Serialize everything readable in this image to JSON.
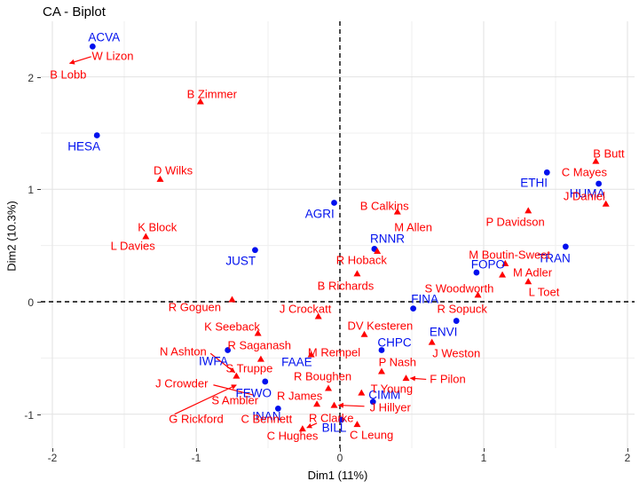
{
  "title": "CA - Biplot",
  "colors": {
    "committee": "#0010ee",
    "person": "#ff0000",
    "grid_major": "#e2e2e2",
    "grid_minor": "#efefef",
    "reference_line": "#000000",
    "axis_text": "#303030",
    "background": "#ffffff"
  },
  "chart_data": {
    "type": "scatter",
    "title": "CA - Biplot",
    "xlabel": "Dim1 (11%)",
    "ylabel": "Dim2 (10.3%)",
    "xlim": [
      -2.08,
      2.05
    ],
    "ylim": [
      -1.3,
      2.5
    ],
    "x_ticks": [
      -2,
      -1,
      0,
      1,
      2
    ],
    "y_ticks": [
      -1,
      0,
      1,
      2
    ],
    "x_minor": [
      -1.5,
      -0.5,
      0.5,
      1.5
    ],
    "y_minor": [
      -0.5,
      0.5,
      1.5,
      2.5
    ],
    "grid": true,
    "legend": "none",
    "reference_lines": {
      "vline_x": 0,
      "hline_y": 0,
      "style": "dashed"
    },
    "series": [
      {
        "name": "committees",
        "marker": "circle",
        "color": "#0010ee",
        "points": [
          {
            "label": "ACVA",
            "x": -1.72,
            "y": 2.27,
            "lx": -1.64,
            "ly": 2.35
          },
          {
            "label": "HESA",
            "x": -1.69,
            "y": 1.48,
            "lx": -1.78,
            "ly": 1.38
          },
          {
            "label": "AGRI",
            "x": -0.04,
            "y": 0.88,
            "lx": -0.14,
            "ly": 0.78
          },
          {
            "label": "JUST",
            "x": -0.59,
            "y": 0.46,
            "lx": -0.69,
            "ly": 0.36
          },
          {
            "label": "RNNR",
            "x": 0.24,
            "y": 0.47,
            "lx": 0.33,
            "ly": 0.56
          },
          {
            "label": "ETHI",
            "x": 1.44,
            "y": 1.15,
            "lx": 1.35,
            "ly": 1.06
          },
          {
            "label": "HUMA",
            "x": 1.8,
            "y": 1.05,
            "lx": 1.72,
            "ly": 0.96
          },
          {
            "label": "TRAN",
            "x": 1.57,
            "y": 0.49,
            "lx": 1.49,
            "ly": 0.39
          },
          {
            "label": "FOPO",
            "x": 0.95,
            "y": 0.26,
            "lx": 1.03,
            "ly": 0.33
          },
          {
            "label": "FINA",
            "x": 0.51,
            "y": -0.06,
            "lx": 0.59,
            "ly": 0.02
          },
          {
            "label": "ENVI",
            "x": 0.81,
            "y": -0.17,
            "lx": 0.72,
            "ly": -0.27
          },
          {
            "label": "CHPC",
            "x": 0.29,
            "y": -0.43,
            "lx": 0.38,
            "ly": -0.36
          },
          {
            "label": "IWFA",
            "x": -0.78,
            "y": -0.43,
            "lx": -0.88,
            "ly": -0.53
          },
          {
            "label": "FAAE",
            "x": null,
            "y": null,
            "lx": -0.3,
            "ly": -0.54
          },
          {
            "label": "FEWO",
            "x": -0.52,
            "y": -0.71,
            "lx": -0.6,
            "ly": -0.81
          },
          {
            "label": "INAN",
            "x": -0.43,
            "y": -0.95,
            "lx": -0.51,
            "ly": -1.02
          },
          {
            "label": "CIMM",
            "x": 0.23,
            "y": -0.89,
            "lx": 0.31,
            "ly": -0.83
          },
          {
            "label": "BILL",
            "x": 0.01,
            "y": -1.05,
            "lx": -0.04,
            "ly": -1.12
          }
        ]
      },
      {
        "name": "individuals",
        "marker": "triangle",
        "color": "#ff0000",
        "points": [
          {
            "label": "W Lizon",
            "x": null,
            "y": null,
            "lx": -1.58,
            "ly": 2.19
          },
          {
            "label": "B Lobb",
            "x": null,
            "y": null,
            "lx": -1.89,
            "ly": 2.02
          },
          {
            "label": "B Zimmer",
            "x": -0.97,
            "y": 1.78,
            "lx": -0.89,
            "ly": 1.85
          },
          {
            "label": "D Wilks",
            "x": -1.25,
            "y": 1.09,
            "lx": -1.16,
            "ly": 1.17
          },
          {
            "label": "K Block",
            "x": -1.35,
            "y": 0.58,
            "lx": -1.27,
            "ly": 0.66
          },
          {
            "label": "L Davies",
            "x": null,
            "y": null,
            "lx": -1.44,
            "ly": 0.5
          },
          {
            "label": "B Butt",
            "x": 1.78,
            "y": 1.25,
            "lx": 1.87,
            "ly": 1.32
          },
          {
            "label": "C Mayes",
            "x": null,
            "y": null,
            "lx": 1.7,
            "ly": 1.15
          },
          {
            "label": "J Daniel",
            "x": 1.85,
            "y": 0.87,
            "lx": 1.7,
            "ly": 0.94
          },
          {
            "label": "B Calkins",
            "x": 0.4,
            "y": 0.8,
            "lx": 0.31,
            "ly": 0.85
          },
          {
            "label": "M Allen",
            "x": 0.26,
            "y": 0.45,
            "lx": 0.51,
            "ly": 0.66
          },
          {
            "label": "P Davidson",
            "x": 1.31,
            "y": 0.81,
            "lx": 1.22,
            "ly": 0.71
          },
          {
            "label": "R Hoback",
            "x": 0.12,
            "y": 0.25,
            "lx": 0.15,
            "ly": 0.37
          },
          {
            "label": "B Richards",
            "x": null,
            "y": null,
            "lx": 0.04,
            "ly": 0.14
          },
          {
            "label": "M Boutin-Sweet",
            "x": 1.15,
            "y": 0.34,
            "lx": 1.18,
            "ly": 0.42
          },
          {
            "label": "M Adler",
            "x": 1.13,
            "y": 0.24,
            "lx": 1.34,
            "ly": 0.26
          },
          {
            "label": "L Toet",
            "x": 1.31,
            "y": 0.18,
            "lx": 1.42,
            "ly": 0.09
          },
          {
            "label": "S Woodworth",
            "x": 0.96,
            "y": 0.06,
            "lx": 0.83,
            "ly": 0.12
          },
          {
            "label": "R Sopuck",
            "x": null,
            "y": null,
            "lx": 0.85,
            "ly": -0.06
          },
          {
            "label": "R Goguen",
            "x": -0.75,
            "y": 0.02,
            "lx": -1.01,
            "ly": -0.05
          },
          {
            "label": "J Crockatt",
            "x": -0.15,
            "y": -0.13,
            "lx": -0.24,
            "ly": -0.06
          },
          {
            "label": "K Seeback",
            "x": -0.57,
            "y": -0.28,
            "lx": -0.75,
            "ly": -0.22
          },
          {
            "label": "DV Kesteren",
            "x": 0.17,
            "y": -0.29,
            "lx": 0.28,
            "ly": -0.21
          },
          {
            "label": "N Ashton",
            "x": null,
            "y": null,
            "lx": -1.09,
            "ly": -0.44
          },
          {
            "label": "R Saganash",
            "x": -0.55,
            "y": -0.51,
            "lx": -0.56,
            "ly": -0.39
          },
          {
            "label": "M Rempel",
            "x": -0.2,
            "y": -0.47,
            "lx": -0.04,
            "ly": -0.45
          },
          {
            "label": "S Truppe",
            "x": -0.72,
            "y": -0.66,
            "lx": -0.63,
            "ly": -0.59
          },
          {
            "label": "J Weston",
            "x": 0.64,
            "y": -0.36,
            "lx": 0.81,
            "ly": -0.46
          },
          {
            "label": "P Nash",
            "x": 0.29,
            "y": -0.62,
            "lx": 0.4,
            "ly": -0.54
          },
          {
            "label": "R Boughen",
            "x": -0.08,
            "y": -0.77,
            "lx": -0.12,
            "ly": -0.66
          },
          {
            "label": "J Crowder",
            "x": null,
            "y": null,
            "lx": -1.1,
            "ly": -0.73
          },
          {
            "label": "F Pilon",
            "x": 0.46,
            "y": -0.68,
            "lx": 0.75,
            "ly": -0.69
          },
          {
            "label": "T Young",
            "x": 0.15,
            "y": -0.81,
            "lx": 0.36,
            "ly": -0.77
          },
          {
            "label": "S Ambler",
            "x": null,
            "y": null,
            "lx": -0.73,
            "ly": -0.88
          },
          {
            "label": "R James",
            "x": -0.16,
            "y": -0.91,
            "lx": -0.28,
            "ly": -0.84
          },
          {
            "label": "J Hillyer",
            "x": -0.04,
            "y": -0.92,
            "lx": 0.35,
            "ly": -0.94
          },
          {
            "label": "G Rickford",
            "x": null,
            "y": null,
            "lx": -1.0,
            "ly": -1.04
          },
          {
            "label": "C Bennett",
            "x": null,
            "y": null,
            "lx": -0.51,
            "ly": -1.04
          },
          {
            "label": "R Clarke",
            "x": -0.26,
            "y": -1.13,
            "lx": -0.06,
            "ly": -1.03
          },
          {
            "label": "C Leung",
            "x": 0.12,
            "y": -1.09,
            "lx": 0.22,
            "ly": -1.18
          },
          {
            "label": "C Hughes",
            "x": null,
            "y": null,
            "lx": -0.33,
            "ly": -1.19
          }
        ]
      }
    ],
    "segments": [
      {
        "for": "W Lizon",
        "x1": -1.73,
        "y1": 2.18,
        "x2": -1.88,
        "y2": 2.12,
        "arrow": true
      },
      {
        "for": "N Ashton",
        "x1": -0.9,
        "y1": -0.46,
        "x2": -0.73,
        "y2": -0.63,
        "arrow": true
      },
      {
        "for": "J Crowder",
        "x1": -0.88,
        "y1": -0.74,
        "x2": -0.6,
        "y2": -0.83,
        "arrow": false
      },
      {
        "for": "G Rickford",
        "x1": -1.15,
        "y1": -1.0,
        "x2": -0.72,
        "y2": -0.74,
        "arrow": true
      },
      {
        "for": "F Pilon",
        "x1": 0.6,
        "y1": -0.69,
        "x2": 0.49,
        "y2": -0.68,
        "arrow": true
      },
      {
        "for": "J Hillyer",
        "x1": 0.17,
        "y1": -0.93,
        "x2": -0.01,
        "y2": -0.92,
        "arrow": true
      },
      {
        "for": "R Clarke",
        "x1": -0.16,
        "y1": -1.08,
        "x2": -0.23,
        "y2": -1.12,
        "arrow": true
      }
    ]
  }
}
